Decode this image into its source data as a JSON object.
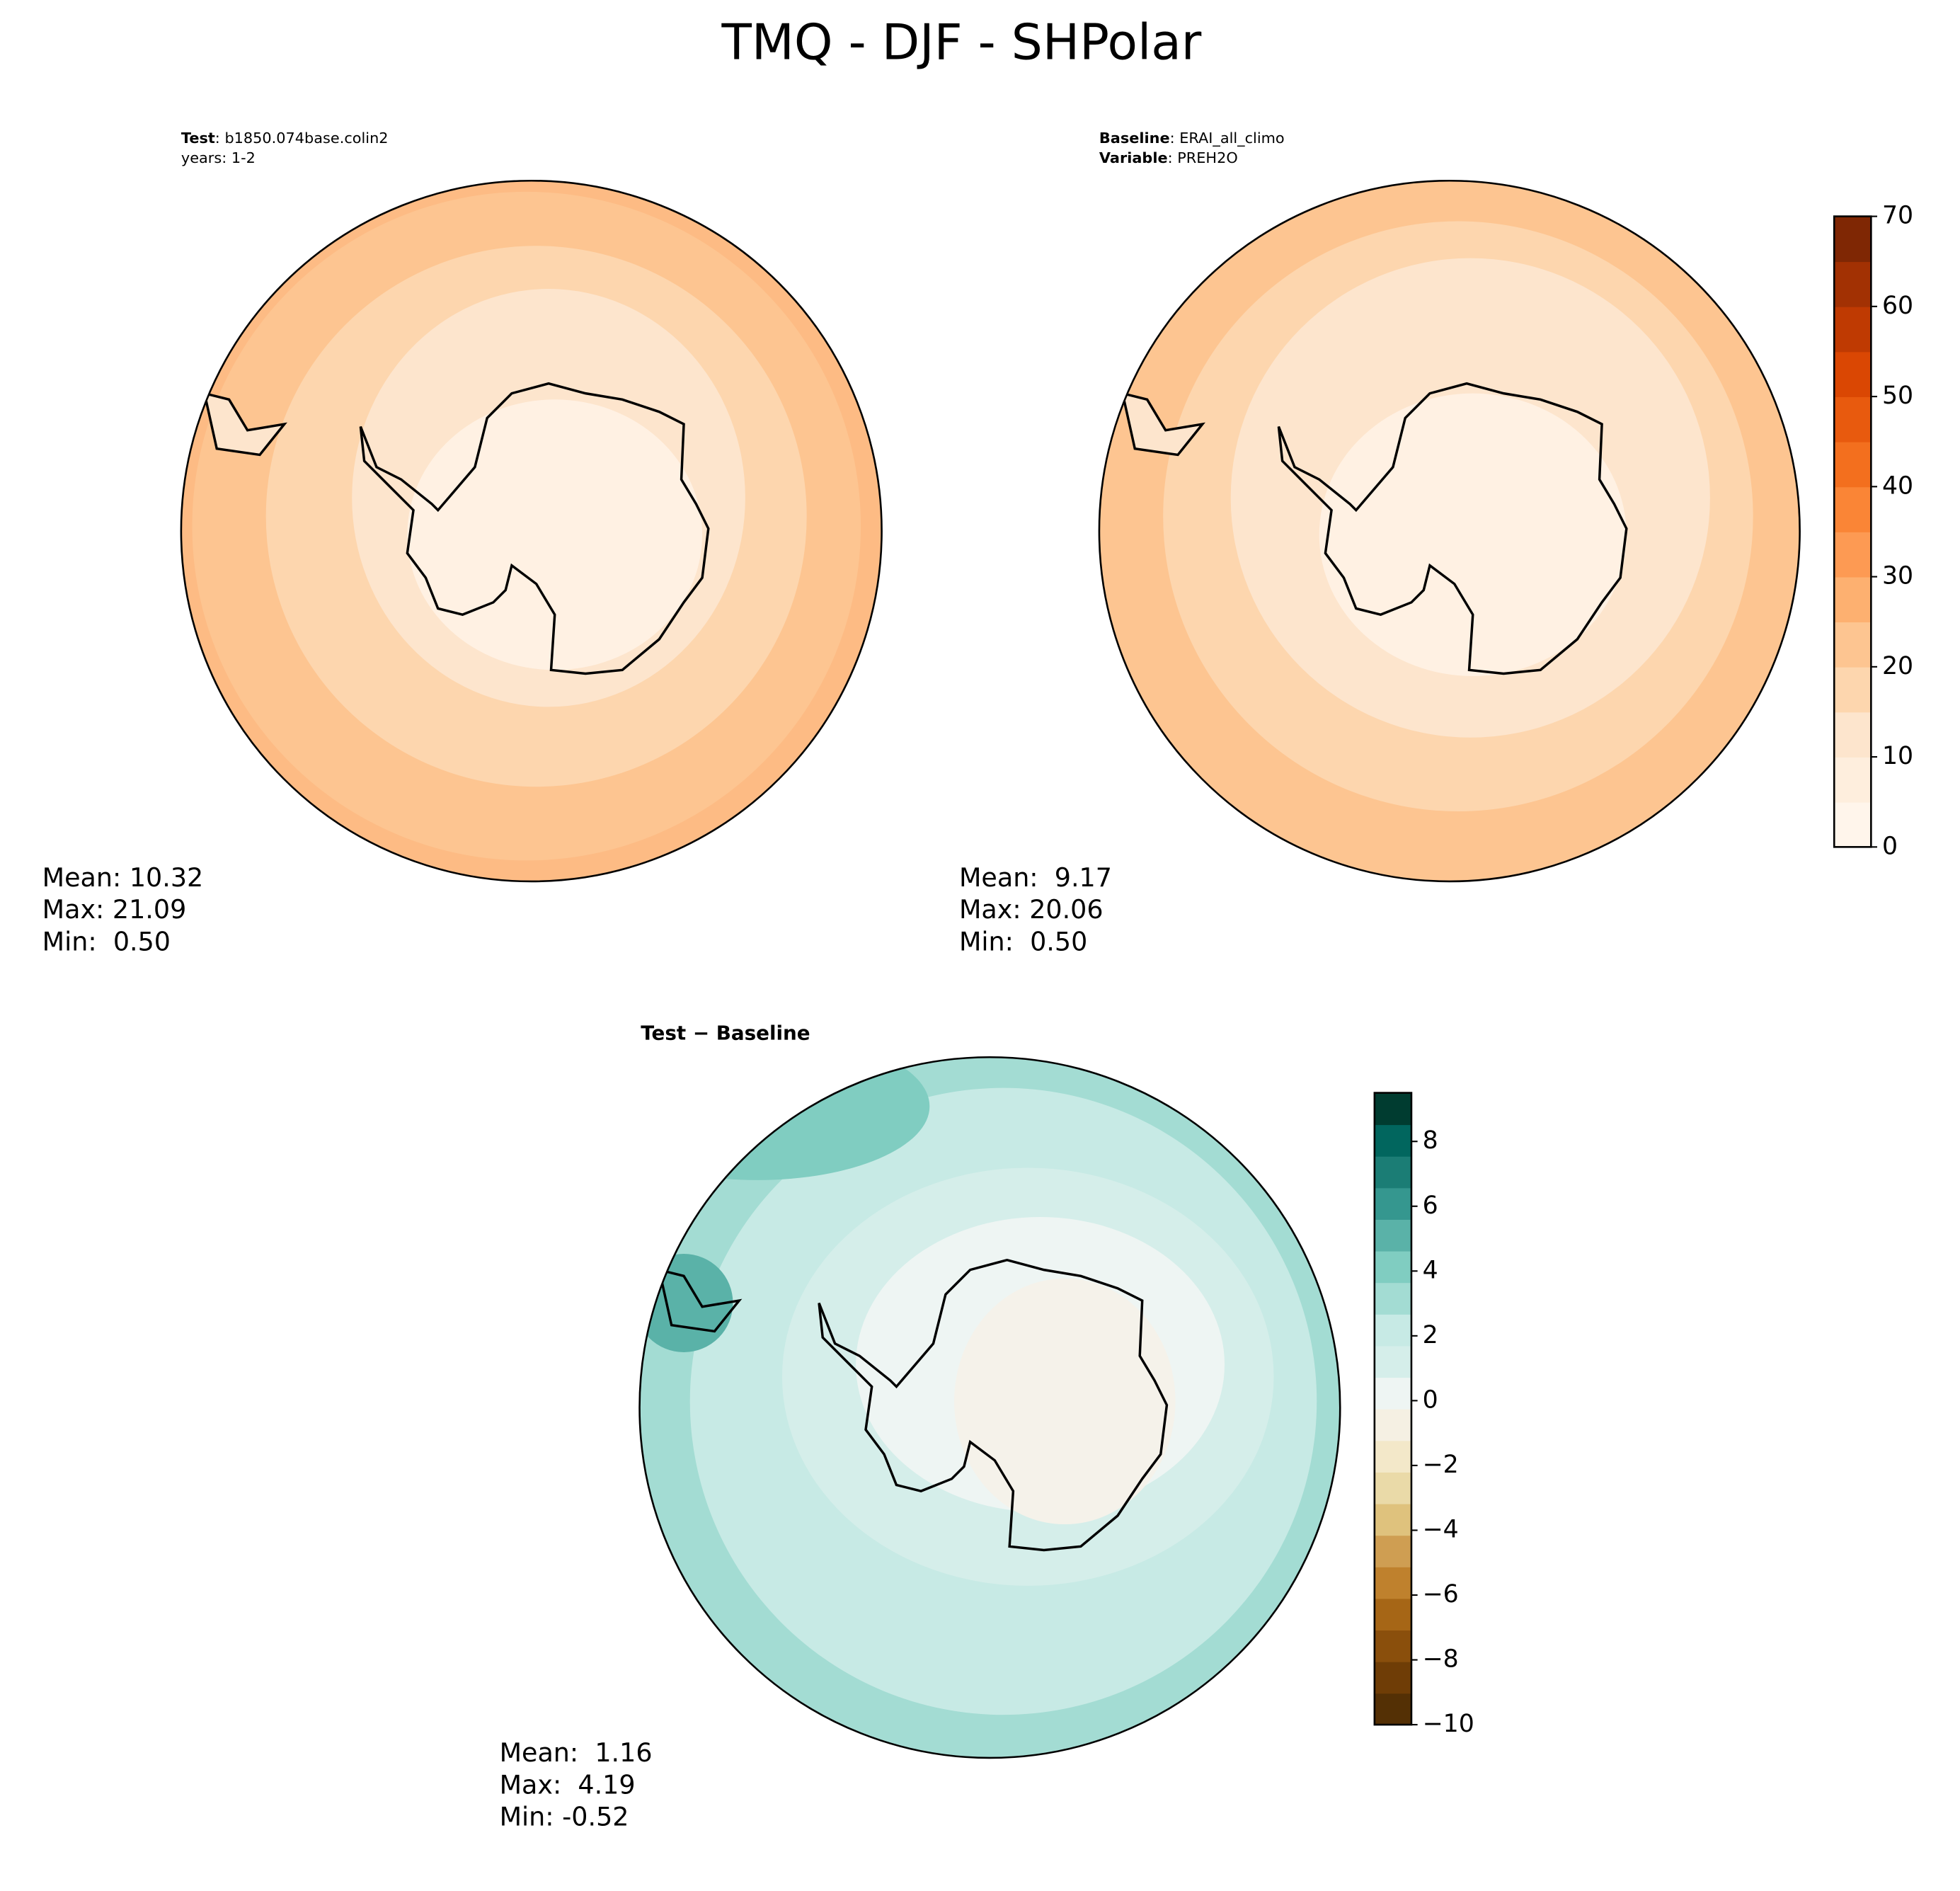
{
  "title": "TMQ - DJF - SHPolar",
  "panels": [
    {
      "header": [
        {
          "bold": "Test",
          "text": ": b1850.074base.colin2"
        },
        {
          "text": "years: 1-2"
        }
      ],
      "stats": [
        "Mean: 10.32",
        "Max: 21.09",
        "Min:  0.50"
      ]
    },
    {
      "header": [
        {
          "bold": "Baseline",
          "text": ": ERAI_all_climo"
        },
        {
          "bold": "Variable",
          "text": ": PREH2O"
        }
      ],
      "stats": [
        "Mean:  9.17",
        "Max: 20.06",
        "Min:  0.50"
      ]
    },
    {
      "header": [
        {
          "bold": "Test − Baseline"
        }
      ],
      "stats": [
        "Mean:  1.16",
        "Max:  4.19",
        "Min: -0.52"
      ]
    }
  ],
  "colorbars": [
    {
      "lim": [
        0,
        70
      ],
      "ticks": [
        0,
        10,
        20,
        30,
        40,
        50,
        60,
        70
      ],
      "colors": [
        "#fff5eb",
        "#feeedd",
        "#fde5cd",
        "#fdd6ae",
        "#fdc591",
        "#fdb070",
        "#fd9a53",
        "#fa8536",
        "#f36f1e",
        "#e85a0e",
        "#da4703",
        "#bf3a02",
        "#a23103",
        "#7f2704"
      ]
    },
    {
      "lim": [
        -10,
        9.5
      ],
      "ticks": [
        {
          "value": -10,
          "label": "−10"
        },
        {
          "value": -8,
          "label": "−8"
        },
        {
          "value": -6,
          "label": "−6"
        },
        {
          "value": -4,
          "label": "−4"
        },
        {
          "value": -2,
          "label": "−2"
        },
        0,
        2,
        4,
        6,
        8
      ],
      "colors": [
        "#543005",
        "#6f3d06",
        "#8a4f0c",
        "#a66616",
        "#bf812d",
        "#cf9e52",
        "#dfc27d",
        "#eadaa8",
        "#f3e8c9",
        "#f5f0e3",
        "#eef5f3",
        "#d5eeea",
        "#c7eae5",
        "#a3dcd3",
        "#80cdc1",
        "#5ab2a8",
        "#35978f",
        "#1b7d75",
        "#01665e",
        "#003c30"
      ]
    }
  ]
}
